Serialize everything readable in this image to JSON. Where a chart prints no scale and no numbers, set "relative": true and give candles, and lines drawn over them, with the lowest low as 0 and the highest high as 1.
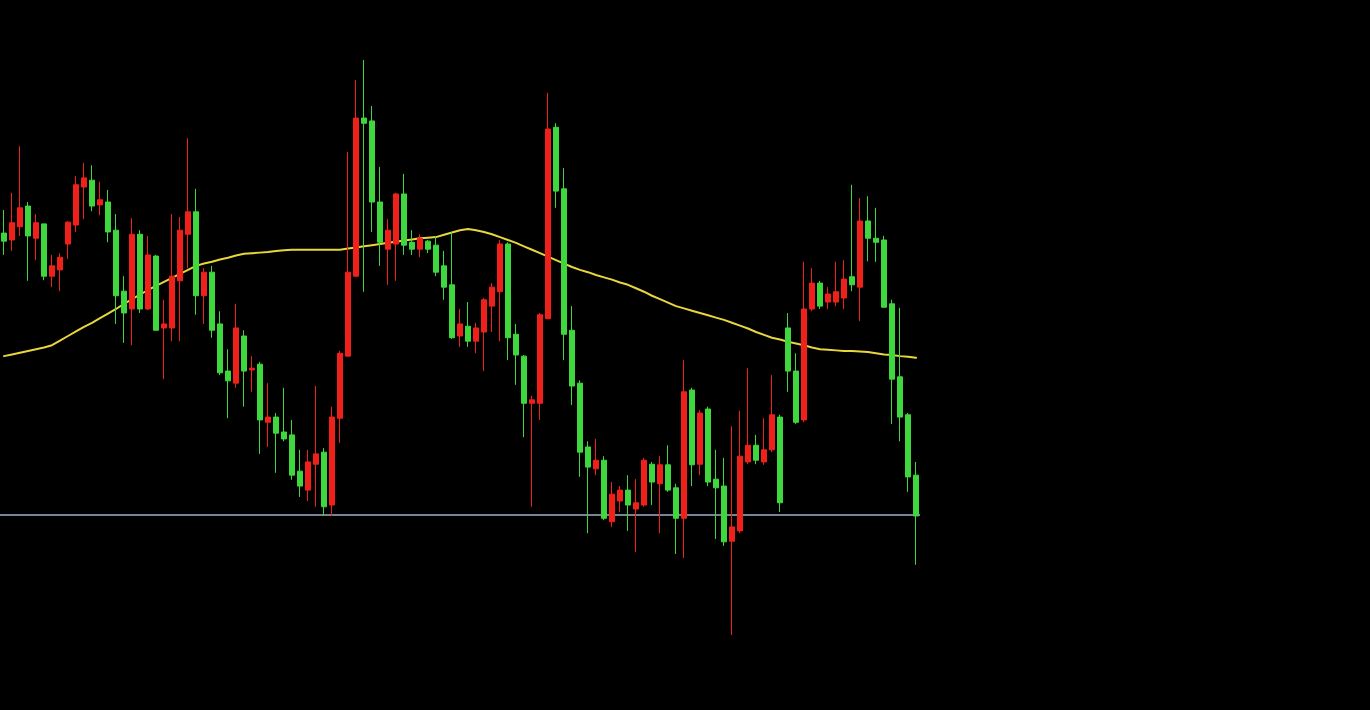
{
  "chart_data": {
    "type": "candlestick",
    "relative": true,
    "categories": [
      null,
      null,
      null,
      null,
      null,
      null,
      null,
      null,
      null,
      null,
      null,
      null,
      null,
      null,
      null,
      null,
      null,
      null,
      null,
      null,
      null,
      null,
      null,
      null,
      null,
      null,
      null,
      null,
      null,
      null,
      null,
      null,
      null,
      null,
      null,
      null,
      null,
      null,
      null,
      null,
      null,
      null,
      null,
      null,
      null,
      null,
      null,
      null,
      null,
      null,
      null,
      null,
      null,
      null,
      null,
      null,
      null,
      null,
      null,
      null,
      null,
      null,
      null,
      null,
      null,
      null,
      null,
      null,
      null,
      null,
      null,
      null,
      null,
      null,
      null,
      null,
      null,
      null,
      null,
      null,
      null,
      null,
      null,
      null,
      null,
      null,
      null,
      null,
      null,
      null,
      null,
      null,
      null,
      null,
      null,
      null,
      null,
      null,
      null,
      null,
      null,
      null,
      null,
      null,
      null,
      null,
      null,
      null,
      null,
      null,
      null,
      null,
      null,
      null,
      null
    ],
    "ohlc": [
      [
        0.699,
        0.739,
        0.661,
        0.685
      ],
      [
        0.687,
        0.769,
        0.668,
        0.717
      ],
      [
        0.71,
        0.85,
        0.694,
        0.743
      ],
      [
        0.746,
        0.753,
        0.616,
        0.694
      ],
      [
        0.69,
        0.732,
        0.652,
        0.717
      ],
      [
        0.715,
        0.715,
        0.617,
        0.624
      ],
      [
        0.624,
        0.661,
        0.605,
        0.642
      ],
      [
        0.635,
        0.664,
        0.598,
        0.657
      ],
      [
        0.68,
        0.72,
        0.654,
        0.718
      ],
      [
        0.713,
        0.798,
        0.701,
        0.783
      ],
      [
        0.779,
        0.821,
        0.723,
        0.795
      ],
      [
        0.791,
        0.817,
        0.737,
        0.746
      ],
      [
        0.748,
        0.788,
        0.73,
        0.757
      ],
      [
        0.753,
        0.774,
        0.683,
        0.701
      ],
      [
        0.704,
        0.732,
        0.541,
        0.59
      ],
      [
        0.598,
        0.624,
        0.508,
        0.56
      ],
      [
        0.567,
        0.725,
        0.504,
        0.697
      ],
      [
        0.697,
        0.704,
        0.56,
        0.567
      ],
      [
        0.567,
        0.694,
        0.565,
        0.661
      ],
      [
        0.659,
        0.661,
        0.53,
        0.53
      ],
      [
        0.534,
        0.583,
        0.445,
        0.541
      ],
      [
        0.534,
        0.732,
        0.511,
        0.624
      ],
      [
        0.616,
        0.727,
        0.511,
        0.704
      ],
      [
        0.697,
        0.864,
        0.638,
        0.736
      ],
      [
        0.736,
        0.776,
        0.557,
        0.59
      ],
      [
        0.59,
        0.638,
        0.541,
        0.631
      ],
      [
        0.631,
        0.642,
        0.517,
        0.53
      ],
      [
        0.541,
        0.563,
        0.452,
        0.456
      ],
      [
        0.459,
        0.497,
        0.377,
        0.442
      ],
      [
        0.438,
        0.576,
        0.43,
        0.534
      ],
      [
        0.52,
        0.53,
        0.397,
        0.459
      ],
      [
        0.461,
        0.485,
        0.423,
        0.464
      ],
      [
        0.471,
        0.475,
        0.315,
        0.374
      ],
      [
        0.37,
        0.438,
        0.327,
        0.379
      ],
      [
        0.379,
        0.386,
        0.282,
        0.351
      ],
      [
        0.353,
        0.43,
        0.337,
        0.341
      ],
      [
        0.348,
        0.374,
        0.27,
        0.278
      ],
      [
        0.285,
        0.322,
        0.24,
        0.259
      ],
      [
        0.252,
        0.322,
        0.233,
        0.301
      ],
      [
        0.297,
        0.433,
        0.223,
        0.315
      ],
      [
        0.318,
        0.325,
        0.207,
        0.223
      ],
      [
        0.226,
        0.397,
        0.207,
        0.379
      ],
      [
        0.377,
        0.494,
        0.334,
        0.49
      ],
      [
        0.485,
        0.84,
        0.485,
        0.631
      ],
      [
        0.624,
        0.965,
        0.623,
        0.899
      ],
      [
        0.899,
        1.0,
        0.597,
        0.89
      ],
      [
        0.894,
        0.92,
        0.701,
        0.753
      ],
      [
        0.753,
        0.814,
        0.642,
        0.683
      ],
      [
        0.671,
        0.723,
        0.609,
        0.704
      ],
      [
        0.68,
        0.769,
        0.616,
        0.767
      ],
      [
        0.767,
        0.802,
        0.661,
        0.678
      ],
      [
        0.683,
        0.704,
        0.661,
        0.671
      ],
      [
        0.671,
        0.697,
        0.657,
        0.69
      ],
      [
        0.685,
        0.687,
        0.664,
        0.671
      ],
      [
        0.678,
        0.694,
        0.624,
        0.631
      ],
      [
        0.642,
        0.668,
        0.583,
        0.605
      ],
      [
        0.609,
        0.701,
        0.515,
        0.517
      ],
      [
        0.52,
        0.567,
        0.501,
        0.541
      ],
      [
        0.537,
        0.579,
        0.501,
        0.511
      ],
      [
        0.511,
        0.543,
        0.49,
        0.534
      ],
      [
        0.527,
        0.586,
        0.459,
        0.583
      ],
      [
        0.572,
        0.612,
        0.527,
        0.605
      ],
      [
        0.597,
        0.687,
        0.511,
        0.68
      ],
      [
        0.68,
        0.683,
        0.478,
        0.517
      ],
      [
        0.523,
        0.541,
        0.435,
        0.487
      ],
      [
        0.485,
        0.487,
        0.344,
        0.403
      ],
      [
        0.403,
        0.416,
        0.223,
        0.409
      ],
      [
        0.403,
        0.56,
        0.374,
        0.557
      ],
      [
        0.55,
        0.943,
        0.55,
        0.88
      ],
      [
        0.883,
        0.89,
        0.743,
        0.772
      ],
      [
        0.776,
        0.812,
        0.478,
        0.523
      ],
      [
        0.53,
        0.572,
        0.4,
        0.433
      ],
      [
        0.438,
        0.443,
        0.275,
        0.318
      ],
      [
        0.327,
        0.337,
        0.177,
        0.292
      ],
      [
        0.289,
        0.341,
        0.278,
        0.304
      ],
      [
        0.304,
        0.311,
        0.2,
        0.203
      ],
      [
        0.197,
        0.266,
        0.188,
        0.245
      ],
      [
        0.233,
        0.259,
        0.214,
        0.252
      ],
      [
        0.252,
        0.278,
        0.181,
        0.226
      ],
      [
        0.219,
        0.271,
        0.144,
        0.23
      ],
      [
        0.226,
        0.308,
        0.223,
        0.304
      ],
      [
        0.297,
        0.301,
        0.226,
        0.266
      ],
      [
        0.263,
        0.311,
        0.177,
        0.296
      ],
      [
        0.296,
        0.33,
        0.249,
        0.252
      ],
      [
        0.256,
        0.263,
        0.141,
        0.203
      ],
      [
        0.203,
        0.478,
        0.134,
        0.423
      ],
      [
        0.426,
        0.43,
        0.259,
        0.296
      ],
      [
        0.297,
        0.391,
        0.278,
        0.386
      ],
      [
        0.393,
        0.397,
        0.259,
        0.266
      ],
      [
        0.271,
        0.322,
        0.167,
        0.256
      ],
      [
        0.259,
        0.308,
        0.155,
        0.162
      ],
      [
        0.163,
        0.363,
        0.0,
        0.188
      ],
      [
        0.181,
        0.39,
        0.177,
        0.311
      ],
      [
        0.301,
        0.464,
        0.297,
        0.33
      ],
      [
        0.33,
        0.348,
        0.297,
        0.304
      ],
      [
        0.301,
        0.377,
        0.296,
        0.322
      ],
      [
        0.322,
        0.452,
        0.318,
        0.383
      ],
      [
        0.379,
        0.383,
        0.214,
        0.23
      ],
      [
        0.534,
        0.56,
        0.423,
        0.459
      ],
      [
        0.459,
        0.49,
        0.367,
        0.37
      ],
      [
        0.374,
        0.649,
        0.37,
        0.567
      ],
      [
        0.567,
        0.638,
        0.563,
        0.612
      ],
      [
        0.612,
        0.616,
        0.567,
        0.572
      ],
      [
        0.579,
        0.605,
        0.567,
        0.593
      ],
      [
        0.579,
        0.649,
        0.572,
        0.597
      ],
      [
        0.586,
        0.652,
        0.567,
        0.619
      ],
      [
        0.623,
        0.783,
        0.598,
        0.609
      ],
      [
        0.605,
        0.76,
        0.546,
        0.72
      ],
      [
        0.72,
        0.763,
        0.65,
        0.69
      ],
      [
        0.69,
        0.743,
        0.649,
        0.683
      ],
      [
        0.687,
        0.694,
        0.57,
        0.57
      ],
      [
        0.576,
        0.583,
        0.367,
        0.445
      ],
      [
        0.449,
        0.569,
        0.337,
        0.379
      ],
      [
        0.383,
        0.386,
        0.249,
        0.275
      ],
      [
        0.278,
        0.301,
        0.122,
        0.207
      ]
    ],
    "colors": [
      "#3ed83e",
      "#f0201a",
      "#f0201a",
      "#3ed83e",
      "#f0201a",
      "#3ed83e",
      "#f0201a",
      "#f0201a",
      "#f0201a",
      "#f0201a",
      "#f0201a",
      "#3ed83e",
      "#f0201a",
      "#3ed83e",
      "#3ed83e",
      "#3ed83e",
      "#f0201a",
      "#3ed83e",
      "#f0201a",
      "#3ed83e",
      "#f0201a",
      "#f0201a",
      "#f0201a",
      "#f0201a",
      "#3ed83e",
      "#f0201a",
      "#3ed83e",
      "#3ed83e",
      "#3ed83e",
      "#f0201a",
      "#3ed83e",
      "#f0201a",
      "#3ed83e",
      "#f0201a",
      "#3ed83e",
      "#3ed83e",
      "#3ed83e",
      "#3ed83e",
      "#f0201a",
      "#f0201a",
      "#3ed83e",
      "#f0201a",
      "#f0201a",
      "#f0201a",
      "#f0201a",
      "#3ed83e",
      "#3ed83e",
      "#3ed83e",
      "#f0201a",
      "#f0201a",
      "#3ed83e",
      "#3ed83e",
      "#f0201a",
      "#3ed83e",
      "#3ed83e",
      "#3ed83e",
      "#3ed83e",
      "#f0201a",
      "#3ed83e",
      "#f0201a",
      "#f0201a",
      "#f0201a",
      "#f0201a",
      "#3ed83e",
      "#3ed83e",
      "#3ed83e",
      "#f0201a",
      "#f0201a",
      "#f0201a",
      "#3ed83e",
      "#3ed83e",
      "#3ed83e",
      "#3ed83e",
      "#3ed83e",
      "#f0201a",
      "#3ed83e",
      "#f0201a",
      "#f0201a",
      "#3ed83e",
      "#f0201a",
      "#f0201a",
      "#3ed83e",
      "#f0201a",
      "#3ed83e",
      "#3ed83e",
      "#f0201a",
      "#3ed83e",
      "#f0201a",
      "#3ed83e",
      "#3ed83e",
      "#3ed83e",
      "#f0201a",
      "#f0201a",
      "#f0201a",
      "#3ed83e",
      "#f0201a",
      "#f0201a",
      "#3ed83e",
      "#3ed83e",
      "#3ed83e",
      "#f0201a",
      "#f0201a",
      "#3ed83e",
      "#f0201a",
      "#f0201a",
      "#f0201a",
      "#3ed83e",
      "#f0201a",
      "#3ed83e",
      "#3ed83e",
      "#3ed83e",
      "#3ed83e",
      "#3ed83e",
      "#3ed83e",
      "#3ed83e"
    ],
    "series": [
      {
        "type": "line",
        "color": "#e8d63c",
        "values": [
          0.485,
          0.488,
          0.491,
          0.494,
          0.497,
          0.5,
          0.504,
          0.512,
          0.52,
          0.528,
          0.536,
          0.543,
          0.551,
          0.559,
          0.567,
          0.576,
          0.584,
          0.592,
          0.6,
          0.607,
          0.614,
          0.621,
          0.628,
          0.635,
          0.642,
          0.646,
          0.649,
          0.653,
          0.656,
          0.66,
          0.663,
          0.664,
          0.665,
          0.666,
          0.668,
          0.669,
          0.67,
          0.67,
          0.67,
          0.67,
          0.67,
          0.67,
          0.67,
          0.672,
          0.674,
          0.676,
          0.678,
          0.68,
          0.682,
          0.684,
          0.686,
          0.688,
          0.69,
          0.691,
          0.692,
          0.696,
          0.7,
          0.704,
          0.706,
          0.704,
          0.701,
          0.697,
          0.692,
          0.687,
          0.682,
          0.676,
          0.67,
          0.664,
          0.658,
          0.652,
          0.646,
          0.64,
          0.635,
          0.631,
          0.626,
          0.622,
          0.618,
          0.613,
          0.609,
          0.603,
          0.597,
          0.59,
          0.584,
          0.578,
          0.572,
          0.568,
          0.564,
          0.56,
          0.556,
          0.552,
          0.548,
          0.543,
          0.538,
          0.533,
          0.527,
          0.522,
          0.517,
          0.514,
          0.51,
          0.507,
          0.504,
          0.5,
          0.497,
          0.496,
          0.495,
          0.494,
          0.494,
          0.493,
          0.492,
          0.49,
          0.488,
          0.487,
          0.485,
          0.484,
          0.482
        ]
      }
    ],
    "ref_lines": [
      {
        "axis": "y",
        "value": 0.207,
        "color": "#9fb0c8"
      }
    ]
  }
}
